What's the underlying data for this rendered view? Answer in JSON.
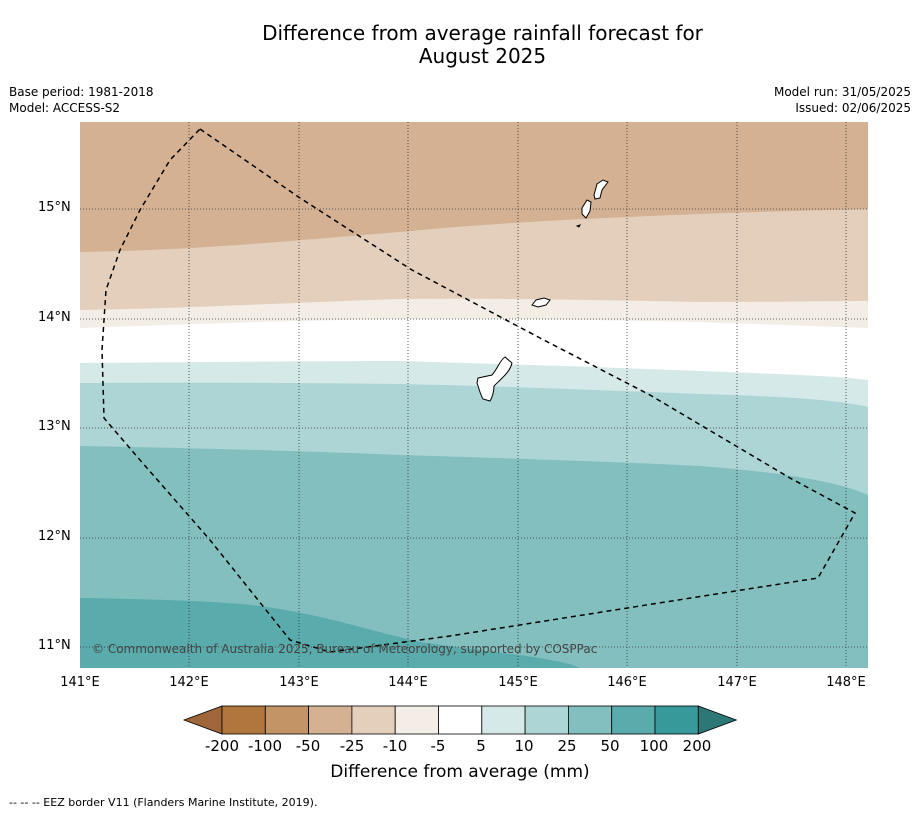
{
  "title_line1": "Difference from average rainfall forecast for",
  "title_line2": "August 2025",
  "meta_left": {
    "base_period": "Base period: 1981-2018",
    "model": "Model: ACCESS-S2"
  },
  "meta_right": {
    "model_run": "Model run: 31/05/2025",
    "issued": "Issued: 02/06/2025"
  },
  "lat_labels": [
    "15°N",
    "14°N",
    "13°N",
    "12°N",
    "11°N"
  ],
  "lon_labels": [
    "141°E",
    "142°E",
    "143°E",
    "144°E",
    "145°E",
    "146°E",
    "147°E",
    "148°E"
  ],
  "copyright": "© Commonwealth of Australia 2025, Bureau of Meteorology, supported by COSPPac",
  "colorbar": {
    "ticks": [
      "-200",
      "-100",
      "-50",
      "-25",
      "-10",
      "-5",
      "5",
      "10",
      "25",
      "50",
      "100",
      "200"
    ],
    "colors": [
      "#a0663a",
      "#b0763e",
      "#c29466",
      "#d3b192",
      "#e4cfbd",
      "#f3ede6",
      "#ffffff",
      "#d6e9e9",
      "#add5d5",
      "#84bfbf",
      "#5aabab",
      "#359a99",
      "#2d7776"
    ],
    "label": "Difference from average (mm)"
  },
  "footer": "--  --  -- EEZ border V11 (Flanders Marine Institute, 2019)."
}
